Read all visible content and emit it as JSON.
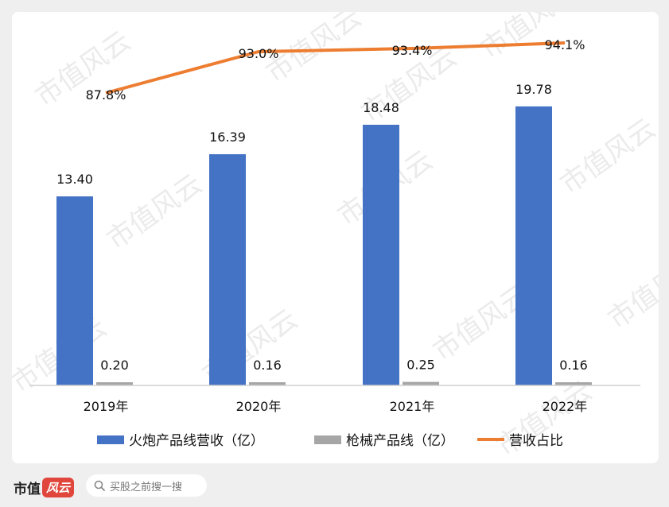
{
  "chart_data": {
    "type": "bar",
    "categories": [
      "2019年",
      "2020年",
      "2021年",
      "2022年"
    ],
    "series": [
      {
        "name": "火炮产品线营收（亿）",
        "type": "bar",
        "color": "#4472c4",
        "values": [
          13.4,
          16.39,
          18.48,
          19.78
        ],
        "labels": [
          "13.40",
          "16.39",
          "18.48",
          "19.78"
        ]
      },
      {
        "name": "枪械产品线（亿）",
        "type": "bar",
        "color": "#a6a6a6",
        "values": [
          0.2,
          0.16,
          0.25,
          0.16
        ],
        "labels": [
          "0.20",
          "0.16",
          "0.25",
          "0.16"
        ]
      },
      {
        "name": "营收占比",
        "type": "line",
        "color": "#ed7d31",
        "values": [
          87.8,
          93.0,
          93.4,
          94.1
        ],
        "labels": [
          "87.8%",
          "93.0%",
          "93.4%",
          "94.1%"
        ]
      }
    ],
    "ylim": [
      0,
      20
    ],
    "secondary_ylim": [
      76,
      96
    ],
    "grid": false,
    "legend": "bottom"
  },
  "watermark": "市值风云",
  "footer": {
    "logo_text": "市值",
    "logo_mark": "风云",
    "search_placeholder": "买股之前搜一搜",
    "search_icon": "search-icon"
  }
}
